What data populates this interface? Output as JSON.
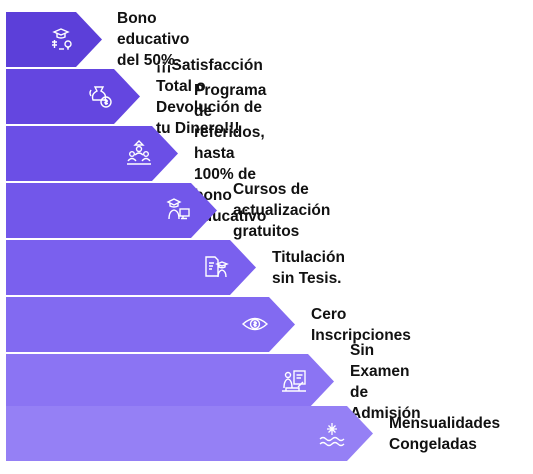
{
  "items": [
    {
      "label": "Bono educativo del 50%.",
      "icon": "graduation-cap-lightbulb-icon",
      "color": "#5c3fd9"
    },
    {
      "label": "¡¡¡Satisfacción Total o\nDevolución de tu Dinero!!!",
      "icon": "money-bag-refund-icon",
      "color": "#6446e0"
    },
    {
      "label": "Programa de referidos, hasta\n100% de bono educativo",
      "icon": "referral-people-icon",
      "color": "#6b4fe6"
    },
    {
      "label": "Cursos de actualización\ngratuitos",
      "icon": "student-computer-icon",
      "color": "#7257ea"
    },
    {
      "label": "Titulación sin Tesis.",
      "icon": "document-graduate-icon",
      "color": "#7a60ee"
    },
    {
      "label": "Cero\nInscripciones",
      "icon": "eye-dollar-icon",
      "color": "#826af1"
    },
    {
      "label": "Sin Examen\nde Admisión",
      "icon": "no-exam-icon",
      "color": "#8b74f3"
    },
    {
      "label": "Mensualidades\nCongeladas",
      "icon": "frozen-payment-icon",
      "color": "#9580f5"
    }
  ]
}
